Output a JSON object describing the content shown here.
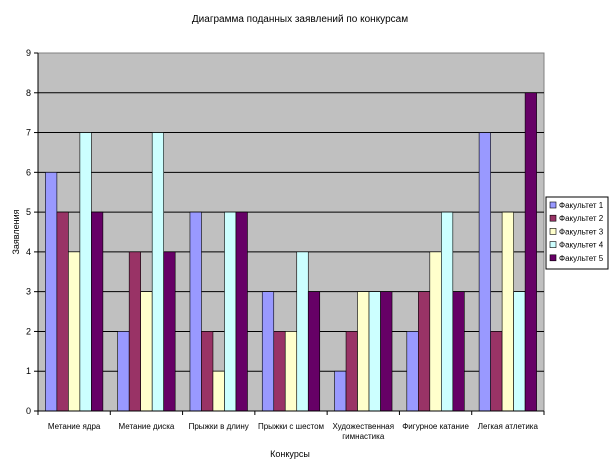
{
  "chart_data": {
    "type": "bar",
    "title": "Диаграмма поданных заявлений по конкурсам",
    "xlabel": "Конкурсы",
    "ylabel": "Заявления",
    "ylim": [
      0,
      9
    ],
    "yticks": [
      0,
      1,
      2,
      3,
      4,
      5,
      6,
      7,
      8,
      9
    ],
    "grid": true,
    "legend_position": "right",
    "categories": [
      [
        "Метание ядра"
      ],
      [
        "Метание диска"
      ],
      [
        "Прыжки в длину"
      ],
      [
        "Прыжки с шестом"
      ],
      [
        "Художественная",
        "гимнастика"
      ],
      [
        "Фигурное катание"
      ],
      [
        "Легкая атлетика"
      ]
    ],
    "series": [
      {
        "name": "Факультет 1",
        "color": "#9999ff",
        "values": [
          6,
          2,
          5,
          3,
          1,
          2,
          7
        ]
      },
      {
        "name": "Факультет 2",
        "color": "#993366",
        "values": [
          5,
          4,
          2,
          2,
          2,
          3,
          2
        ]
      },
      {
        "name": "Факультет 3",
        "color": "#ffffcc",
        "values": [
          4,
          3,
          1,
          2,
          3,
          4,
          5
        ]
      },
      {
        "name": "Факультет 4",
        "color": "#ccffff",
        "values": [
          7,
          7,
          5,
          4,
          3,
          5,
          3
        ]
      },
      {
        "name": "Факультет 5",
        "color": "#660066",
        "values": [
          5,
          4,
          5,
          3,
          3,
          3,
          8
        ]
      }
    ],
    "plot_background": "#c0c0c0"
  }
}
